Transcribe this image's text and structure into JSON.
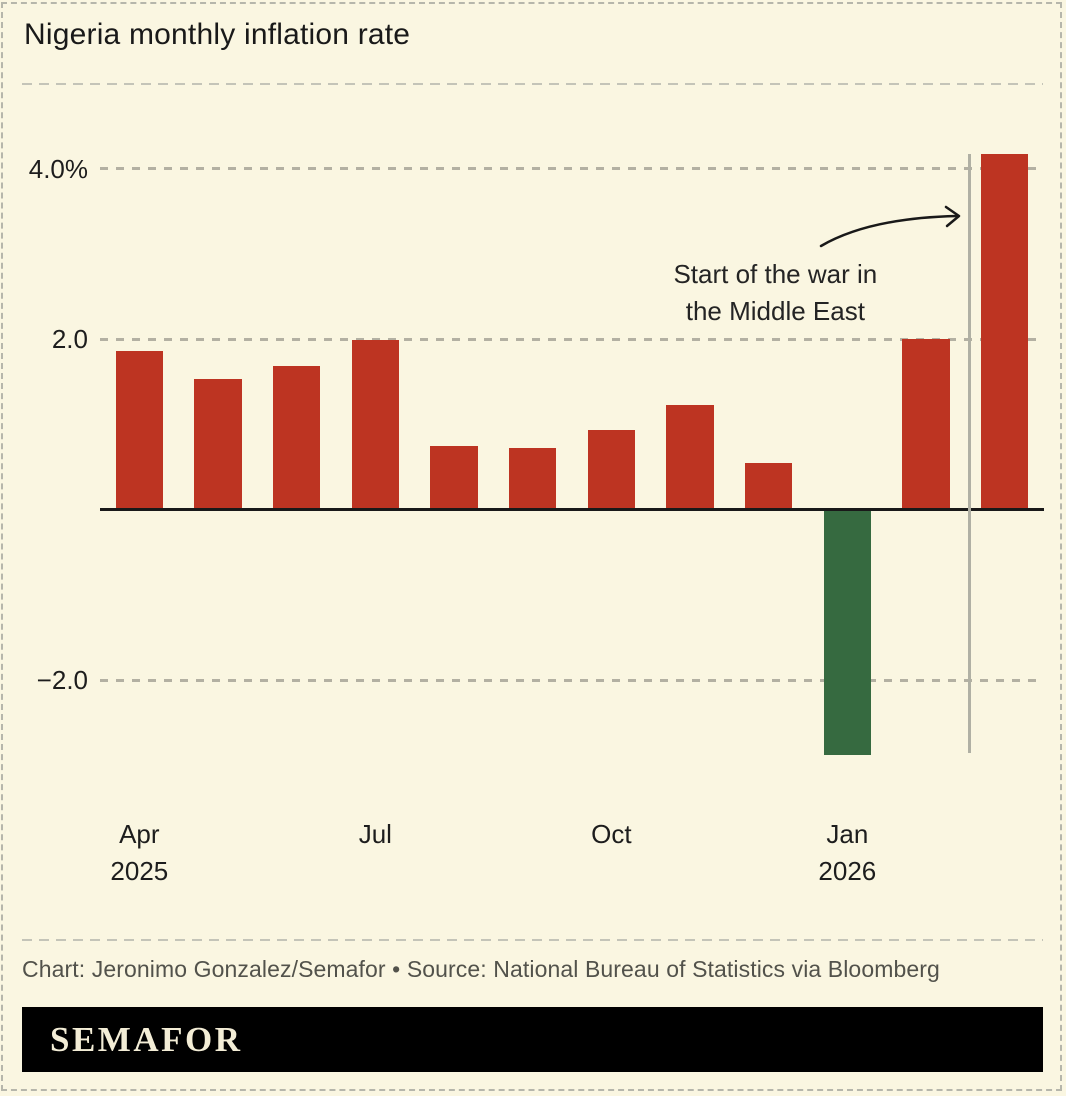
{
  "page": {
    "background": "#faf6e1",
    "border_color": "#b6b6ab"
  },
  "header": {
    "title": "Nigeria monthly inflation rate"
  },
  "chart_data": {
    "type": "bar",
    "title": "Nigeria monthly inflation rate",
    "categories": [
      "Apr 2025",
      "May 2025",
      "Jun 2025",
      "Jul 2025",
      "Aug 2025",
      "Sep 2025",
      "Oct 2025",
      "Nov 2025",
      "Dec 2025",
      "Jan 2026",
      "Feb 2026",
      "Mar 2026"
    ],
    "values": [
      1.86,
      1.53,
      1.68,
      1.99,
      0.75,
      0.72,
      0.93,
      1.22,
      0.55,
      -2.86,
      2.0,
      4.17
    ],
    "unit": "percent month-on-month",
    "ylim": [
      -3.3,
      4.4
    ],
    "yticks": [
      {
        "value": 4,
        "label": "4.0%"
      },
      {
        "value": 2,
        "label": "2.0"
      },
      {
        "value": -2,
        "label": "−2.0"
      }
    ],
    "xticks": [
      {
        "index": 0,
        "lines": [
          "Apr",
          "2025"
        ]
      },
      {
        "index": 3,
        "lines": [
          "Jul"
        ]
      },
      {
        "index": 6,
        "lines": [
          "Oct"
        ]
      },
      {
        "index": 9,
        "lines": [
          "Jan",
          "2026"
        ]
      }
    ],
    "grid": "horizontal-dashed",
    "legend": "none",
    "colors": {
      "positive_bar": "#bd3422",
      "negative_bar": "#366a40",
      "axis": "#191919",
      "gridline": "#b3b0a2",
      "event_line": "#b0b0a4"
    },
    "annotation": {
      "lines": [
        "Start of the war in",
        "the Middle East"
      ],
      "has_arrow": true,
      "event_line_between": [
        "Feb 2026",
        "Mar 2026"
      ]
    }
  },
  "footer": {
    "credit": "Chart: Jeronimo Gonzalez/Semafor • Source: National Bureau of Statistics via Bloomberg",
    "logo": "SEMAFOR"
  }
}
